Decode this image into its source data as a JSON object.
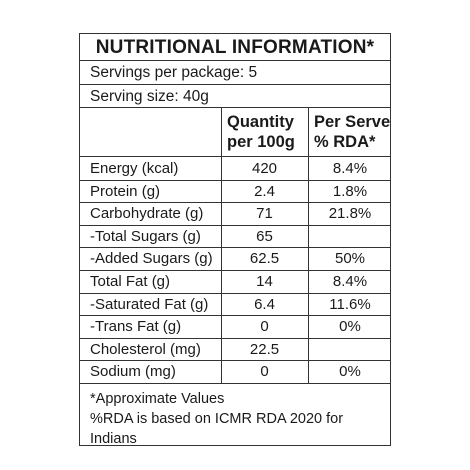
{
  "title": "NUTRITIONAL INFORMATION*",
  "servings": "Servings per package: 5",
  "serving_size": "Serving size: 40g",
  "headers": {
    "quantity_line1": "Quantity",
    "quantity_line2": "per 100g",
    "rda_line1": "Per Serve",
    "rda_line2": "% RDA*"
  },
  "rows": [
    {
      "name": "Energy (kcal)",
      "qty": "420",
      "rda": "8.4%"
    },
    {
      "name": "Protein (g)",
      "qty": "2.4",
      "rda": "1.8%"
    },
    {
      "name": "Carbohydrate (g)",
      "qty": "71",
      "rda": "21.8%"
    },
    {
      "name": "-Total Sugars (g)",
      "qty": "65",
      "rda": ""
    },
    {
      "name": "-Added Sugars (g)",
      "qty": "62.5",
      "rda": "50%"
    },
    {
      "name": "Total Fat (g)",
      "qty": "14",
      "rda": "8.4%"
    },
    {
      "name": "-Saturated Fat (g)",
      "qty": "6.4",
      "rda": "11.6%"
    },
    {
      "name": "-Trans Fat (g)",
      "qty": "0",
      "rda": "0%"
    },
    {
      "name": "Cholesterol (mg)",
      "qty": "22.5",
      "rda": ""
    },
    {
      "name": "Sodium (mg)",
      "qty": "0",
      "rda": "0%"
    }
  ],
  "footnote1": "*Approximate Values",
  "footnote2": "%RDA is based on ICMR RDA 2020 for Indians"
}
